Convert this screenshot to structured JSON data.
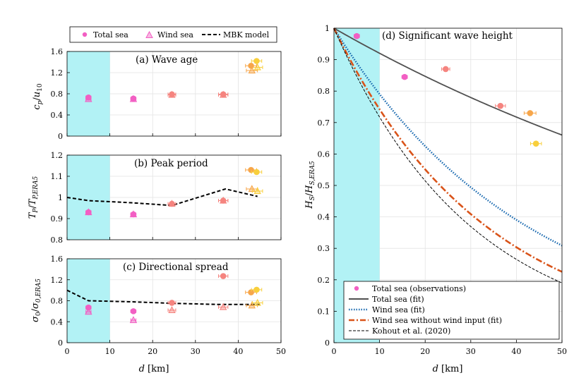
{
  "colors": {
    "shade": "#b2f2f5",
    "pink": "#f25fc3",
    "salmon": "#f5847f",
    "orange": "#f7a64a",
    "gold": "#f8cf3c",
    "fit_total": "#505050",
    "fit_wind": "#1a6ab0",
    "fit_nowind": "#d95319",
    "kohout": "#000000",
    "mbk": "#000000",
    "grid": "#e3e3e3"
  },
  "chart_data": [
    {
      "id": "a",
      "type": "scatter",
      "title": "(a) Wave age",
      "xlabel": "",
      "ylabel": "c_p/u_10",
      "xlim": [
        0,
        50
      ],
      "ylim": [
        0,
        1.6
      ],
      "xticks": [
        "0",
        "10",
        "20",
        "30",
        "40",
        "50"
      ],
      "yticks": [
        "0",
        "0.4",
        "0.8",
        "1.2",
        "1.6"
      ],
      "shaded_x": [
        0,
        10
      ],
      "total_sea": [
        {
          "x": 5,
          "y": 0.73,
          "xerr": 0.6,
          "color": "pink"
        },
        {
          "x": 15.5,
          "y": 0.71,
          "xerr": 0.6,
          "color": "pink"
        },
        {
          "x": 24.5,
          "y": 0.79,
          "xerr": 0.9,
          "color": "salmon"
        },
        {
          "x": 36.5,
          "y": 0.79,
          "xerr": 1.1,
          "color": "salmon"
        },
        {
          "x": 43,
          "y": 1.33,
          "xerr": 1.3,
          "color": "orange"
        },
        {
          "x": 44.3,
          "y": 1.42,
          "xerr": 1.2,
          "color": "gold"
        }
      ],
      "wind_sea": [
        {
          "x": 5,
          "y": 0.7,
          "xerr": 0.6,
          "color": "pink"
        },
        {
          "x": 15.5,
          "y": 0.7,
          "xerr": 0.6,
          "color": "pink"
        },
        {
          "x": 24.5,
          "y": 0.78,
          "xerr": 0.9,
          "color": "salmon"
        },
        {
          "x": 36.5,
          "y": 0.78,
          "xerr": 1.1,
          "color": "salmon"
        },
        {
          "x": 43.2,
          "y": 1.24,
          "xerr": 1.3,
          "color": "orange"
        },
        {
          "x": 44.5,
          "y": 1.3,
          "xerr": 1.2,
          "color": "gold"
        }
      ],
      "mbk": []
    },
    {
      "id": "b",
      "type": "scatter",
      "title": "(b) Peak period",
      "xlabel": "",
      "ylabel": "T_P/T_P,ERA5",
      "xlim": [
        0,
        50
      ],
      "ylim": [
        0.8,
        1.2
      ],
      "xticks": [
        "0",
        "10",
        "20",
        "30",
        "40",
        "50"
      ],
      "yticks": [
        "0.8",
        "0.9",
        "1",
        "1.1",
        "1.2"
      ],
      "shaded_x": [
        0,
        10
      ],
      "total_sea": [
        {
          "x": 5,
          "y": 0.93,
          "xerr": 0.6,
          "color": "pink"
        },
        {
          "x": 15.5,
          "y": 0.92,
          "xerr": 0.6,
          "color": "pink"
        },
        {
          "x": 24.5,
          "y": 0.97,
          "xerr": 0.9,
          "color": "salmon"
        },
        {
          "x": 36.5,
          "y": 0.985,
          "xerr": 1.1,
          "color": "salmon"
        },
        {
          "x": 43,
          "y": 1.13,
          "xerr": 1.3,
          "color": "orange"
        },
        {
          "x": 44.3,
          "y": 1.12,
          "xerr": 1.2,
          "color": "gold"
        }
      ],
      "wind_sea": [
        {
          "x": 5,
          "y": 0.93,
          "xerr": 0.6,
          "color": "pink"
        },
        {
          "x": 15.5,
          "y": 0.92,
          "xerr": 0.6,
          "color": "pink"
        },
        {
          "x": 24.5,
          "y": 0.97,
          "xerr": 0.9,
          "color": "salmon"
        },
        {
          "x": 36.5,
          "y": 0.985,
          "xerr": 1.1,
          "color": "salmon"
        },
        {
          "x": 43.2,
          "y": 1.04,
          "xerr": 1.3,
          "color": "orange"
        },
        {
          "x": 44.5,
          "y": 1.03,
          "xerr": 1.2,
          "color": "gold"
        }
      ],
      "mbk": [
        [
          0,
          1.0
        ],
        [
          5,
          0.985
        ],
        [
          15,
          0.975
        ],
        [
          24.5,
          0.962
        ],
        [
          37,
          1.04
        ],
        [
          44.5,
          1.005
        ]
      ]
    },
    {
      "id": "c",
      "type": "scatter",
      "title": "(c) Directional spread",
      "xlabel": "d [km]",
      "ylabel": "σ_0/σ_0,ERA5",
      "xlim": [
        0,
        50
      ],
      "ylim": [
        0,
        1.6
      ],
      "xticks": [
        "0",
        "10",
        "20",
        "30",
        "40",
        "50"
      ],
      "yticks": [
        "0",
        "0.4",
        "0.8",
        "1.2",
        "1.6"
      ],
      "shaded_x": [
        0,
        10
      ],
      "total_sea": [
        {
          "x": 5,
          "y": 0.67,
          "xerr": 0.6,
          "color": "pink"
        },
        {
          "x": 15.5,
          "y": 0.6,
          "xerr": 0.6,
          "color": "pink"
        },
        {
          "x": 24.5,
          "y": 0.76,
          "xerr": 0.9,
          "color": "salmon"
        },
        {
          "x": 36.5,
          "y": 1.27,
          "xerr": 1.1,
          "color": "salmon"
        },
        {
          "x": 43,
          "y": 0.96,
          "xerr": 1.3,
          "color": "orange"
        },
        {
          "x": 44.3,
          "y": 1.01,
          "xerr": 1.2,
          "color": "gold"
        }
      ],
      "wind_sea": [
        {
          "x": 5,
          "y": 0.59,
          "xerr": 0.6,
          "color": "pink"
        },
        {
          "x": 15.5,
          "y": 0.43,
          "xerr": 0.6,
          "color": "pink"
        },
        {
          "x": 24.5,
          "y": 0.62,
          "xerr": 0.9,
          "color": "salmon"
        },
        {
          "x": 36.5,
          "y": 0.68,
          "xerr": 1.1,
          "color": "salmon"
        },
        {
          "x": 43.2,
          "y": 0.71,
          "xerr": 1.3,
          "color": "orange"
        },
        {
          "x": 44.5,
          "y": 0.76,
          "xerr": 1.2,
          "color": "gold"
        }
      ],
      "mbk": [
        [
          0,
          1.0
        ],
        [
          5,
          0.8
        ],
        [
          15,
          0.78
        ],
        [
          25,
          0.75
        ],
        [
          35,
          0.73
        ],
        [
          45,
          0.73
        ]
      ]
    },
    {
      "id": "d",
      "type": "line",
      "title": "(d) Significant wave height",
      "xlabel": "d [km]",
      "ylabel": "H_S/H_S,ERA5",
      "xlim": [
        0,
        50
      ],
      "ylim": [
        0,
        1
      ],
      "xticks": [
        "0",
        "10",
        "20",
        "30",
        "40",
        "50"
      ],
      "yticks": [
        "0",
        "0.1",
        "0.2",
        "0.3",
        "0.4",
        "0.5",
        "0.6",
        "0.7",
        "0.8",
        "0.9",
        "1"
      ],
      "shaded_x": [
        0,
        10
      ],
      "observations": [
        {
          "x": 5,
          "y": 0.975,
          "xerr": 0.6,
          "color": "pink"
        },
        {
          "x": 15.5,
          "y": 0.845,
          "xerr": 0.6,
          "color": "pink"
        },
        {
          "x": 24.5,
          "y": 0.87,
          "xerr": 0.9,
          "color": "salmon"
        },
        {
          "x": 36.5,
          "y": 0.753,
          "xerr": 1.1,
          "color": "salmon"
        },
        {
          "x": 43,
          "y": 0.73,
          "xerr": 1.3,
          "color": "orange"
        },
        {
          "x": 44.3,
          "y": 0.633,
          "xerr": 1.2,
          "color": "gold"
        }
      ],
      "fits": [
        {
          "name": "Total sea (fit)",
          "decay_per_km": 0.0083,
          "style": "fit_total"
        },
        {
          "name": "Wind sea (fit)",
          "decay_per_km": 0.0235,
          "style": "fit_wind"
        },
        {
          "name": "Wind sea without wind input (fit)",
          "decay_per_km": 0.0298,
          "style": "fit_nowind"
        },
        {
          "name": "Kohout et al. (2020)",
          "decay_per_km": 0.0332,
          "style": "kohout"
        }
      ]
    }
  ],
  "legend_top": {
    "total_sea": "Total sea",
    "wind_sea": "Wind sea",
    "mbk": "MBK model"
  },
  "legend_d": {
    "observations": "Total sea (observations)",
    "total_fit": "Total sea (fit)",
    "wind_fit": "Wind sea (fit)",
    "nowind_fit": "Wind sea without wind input (fit)",
    "kohout": "Kohout et al. (2020)"
  }
}
